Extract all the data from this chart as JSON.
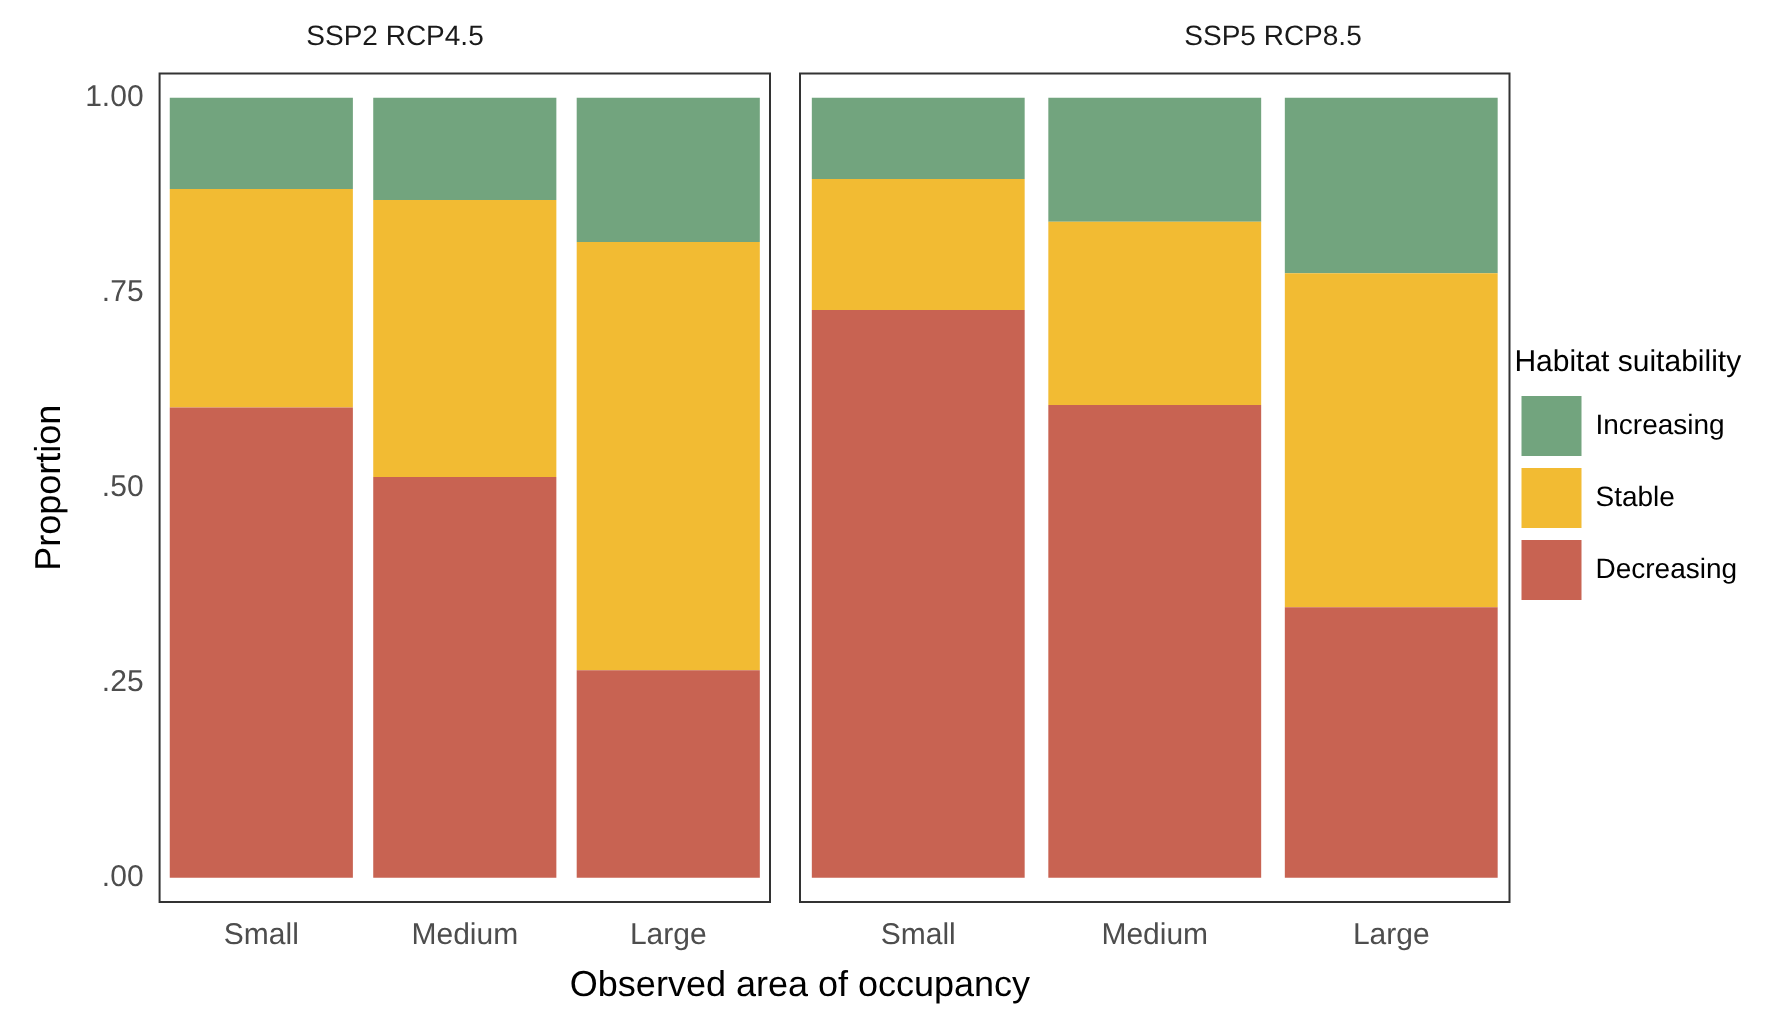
{
  "chart_data": [
    {
      "type": "bar",
      "title": "SSP2 RCP4.5",
      "xlabel": "Observed area of occupancy",
      "ylabel": "Proportion",
      "stacked": true,
      "categories": [
        "Small",
        "Medium",
        "Large"
      ],
      "ylim": [
        -0.031,
        1.031
      ],
      "yticks": [
        {
          "value": 0,
          "label": ".00"
        },
        {
          "value": 0.25,
          "label": ".25"
        },
        {
          "value": 0.5,
          "label": ".50"
        },
        {
          "value": 0.75,
          "label": ".75"
        },
        {
          "value": 1,
          "label": "1.00"
        }
      ],
      "grid": false,
      "legend": false,
      "series": [
        {
          "color": "#c86352",
          "values": [
            0.603,
            0.514,
            0.266
          ]
        },
        {
          "color": "#f2bb33",
          "values": [
            0.28,
            0.355,
            0.549
          ]
        },
        {
          "color": "#72a47e",
          "values": [
            0.117,
            0.131,
            0.185
          ]
        }
      ]
    },
    {
      "type": "bar",
      "title": "SSP5 RCP8.5",
      "stacked": true,
      "categories": [
        "Small",
        "Medium",
        "Large"
      ],
      "ylim": [
        -0.031,
        1.031
      ],
      "tick_labels": "x",
      "grid": false,
      "legend": "right",
      "legend_title": "Habitat suitability",
      "series": [
        {
          "name": "Decreasing",
          "color": "#c86352",
          "values": [
            0.728,
            0.606,
            0.347
          ]
        },
        {
          "name": "Stable",
          "color": "#f2bb33",
          "values": [
            0.168,
            0.235,
            0.428
          ]
        },
        {
          "name": "Increasing",
          "color": "#72a47e",
          "values": [
            0.104,
            0.159,
            0.225
          ]
        }
      ]
    }
  ]
}
